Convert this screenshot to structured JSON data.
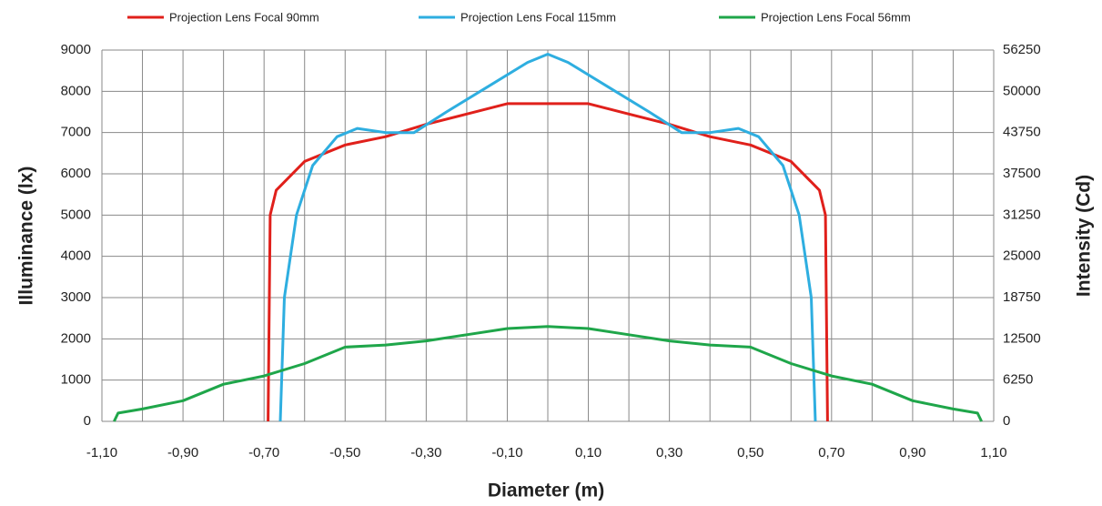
{
  "chart_data": {
    "type": "line",
    "xlabel": "Diameter (m)",
    "ylabel": "Illuminance  (lx)",
    "y2label": "Intensity  (Cd)",
    "xlim": [
      -1.1,
      1.1
    ],
    "xticks": [
      {
        "value": -1.1,
        "label": "-1,10"
      },
      {
        "value": -0.9,
        "label": "-0,90"
      },
      {
        "value": -0.7,
        "label": "-0,70"
      },
      {
        "value": -0.5,
        "label": "-0,50"
      },
      {
        "value": -0.3,
        "label": "-0,30"
      },
      {
        "value": -0.1,
        "label": "-0,10"
      },
      {
        "value": 0.1,
        "label": "0,10"
      },
      {
        "value": 0.3,
        "label": "0,30"
      },
      {
        "value": 0.5,
        "label": "0,50"
      },
      {
        "value": 0.7,
        "label": "0,70"
      },
      {
        "value": 0.9,
        "label": "0,90"
      },
      {
        "value": 1.1,
        "label": "1,10"
      }
    ],
    "xgrid_minor": [
      -1.0,
      -0.8,
      -0.6,
      -0.4,
      -0.2,
      0.0,
      0.2,
      0.4,
      0.6,
      0.8,
      1.0
    ],
    "ylim": [
      0,
      9000
    ],
    "yticks": [
      0,
      1000,
      2000,
      3000,
      4000,
      5000,
      6000,
      7000,
      8000,
      9000
    ],
    "y2lim": [
      0,
      56250
    ],
    "y2ticks": [
      0,
      6250,
      12500,
      18750,
      25000,
      31250,
      37500,
      43750,
      50000,
      56250
    ],
    "grid": true,
    "series": [
      {
        "name": "Projection Lens Focal 90mm",
        "color": "#e0201b",
        "x": [
          -0.69,
          -0.685,
          -0.67,
          -0.6,
          -0.5,
          -0.4,
          -0.3,
          -0.2,
          -0.1,
          0,
          0.1,
          0.2,
          0.3,
          0.4,
          0.5,
          0.6,
          0.67,
          0.685,
          0.69
        ],
        "values": [
          0,
          5000,
          5600,
          6300,
          6700,
          6900,
          7200,
          7450,
          7700,
          7700,
          7700,
          7450,
          7200,
          6900,
          6700,
          6300,
          5600,
          5000,
          0
        ]
      },
      {
        "name": "Projection Lens Focal 115mm",
        "color": "#2eaee0",
        "x": [
          -0.66,
          -0.65,
          -0.62,
          -0.58,
          -0.52,
          -0.47,
          -0.4,
          -0.33,
          -0.25,
          -0.15,
          -0.05,
          0,
          0.05,
          0.15,
          0.25,
          0.33,
          0.4,
          0.47,
          0.52,
          0.58,
          0.62,
          0.65,
          0.66
        ],
        "values": [
          0,
          3000,
          5000,
          6200,
          6900,
          7100,
          7000,
          7000,
          7500,
          8100,
          8700,
          8900,
          8700,
          8100,
          7500,
          7000,
          7000,
          7100,
          6900,
          6200,
          5000,
          3000,
          0
        ]
      },
      {
        "name": "Projection Lens Focal 56mm",
        "color": "#1fa64a",
        "x": [
          -1.07,
          -1.06,
          -1.0,
          -0.9,
          -0.8,
          -0.7,
          -0.6,
          -0.5,
          -0.4,
          -0.3,
          -0.2,
          -0.1,
          0,
          0.1,
          0.2,
          0.3,
          0.4,
          0.5,
          0.6,
          0.7,
          0.8,
          0.9,
          1.0,
          1.06,
          1.07
        ],
        "values": [
          0,
          200,
          300,
          500,
          900,
          1100,
          1400,
          1800,
          1850,
          1950,
          2100,
          2250,
          2300,
          2250,
          2100,
          1950,
          1850,
          1800,
          1400,
          1100,
          900,
          500,
          300,
          200,
          0
        ]
      }
    ]
  }
}
